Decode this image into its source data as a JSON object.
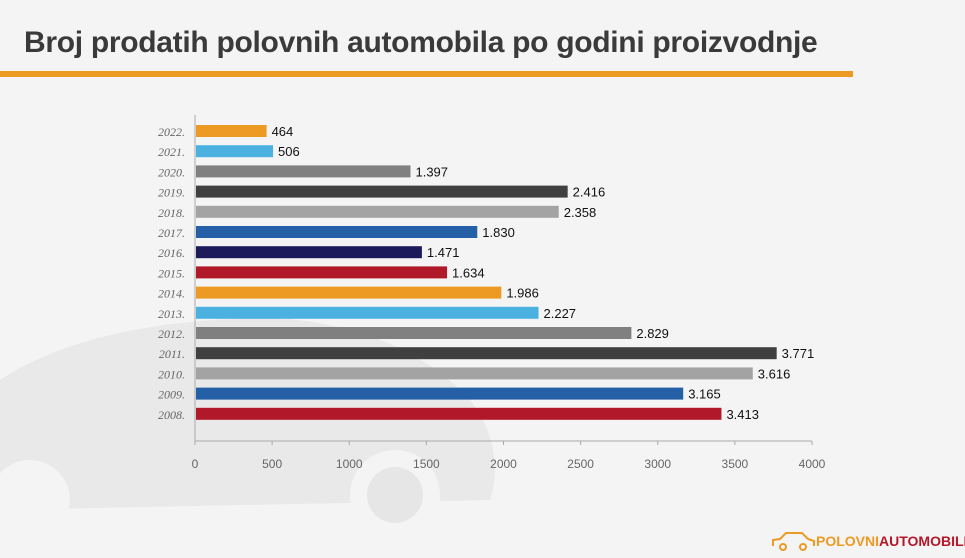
{
  "title": "Broj prodatih polovnih automobila po godini proizvodnje",
  "logo": {
    "part1": "POLOVNI",
    "part2": "AUTOMOBILI"
  },
  "chart_data": {
    "type": "bar",
    "orientation": "horizontal",
    "title": "Broj prodatih polovnih automobila po godini proizvodnje",
    "categories": [
      "2022.",
      "2021.",
      "2020.",
      "2019.",
      "2018.",
      "2017.",
      "2016.",
      "2015.",
      "2014.",
      "2013.",
      "2012.",
      "2011.",
      "2010.",
      "2009.",
      "2008."
    ],
    "values": [
      464,
      506,
      1397,
      2416,
      2358,
      1830,
      1471,
      1634,
      1986,
      2227,
      2829,
      3771,
      3616,
      3165,
      3413
    ],
    "labels": [
      "464",
      "506",
      "1.397",
      "2.416",
      "2.358",
      "1.830",
      "1.471",
      "1.634",
      "1.986",
      "2.227",
      "2.829",
      "3.771",
      "3.616",
      "3.165",
      "3.413"
    ],
    "colors": [
      "#ec9a23",
      "#4bb1e0",
      "#808080",
      "#404040",
      "#a3a3a3",
      "#255fa5",
      "#1c1a5a",
      "#b1192b",
      "#ec9a23",
      "#4bb1e0",
      "#808080",
      "#404040",
      "#a3a3a3",
      "#255fa5",
      "#b1192b"
    ],
    "xticks": [
      "0",
      "500",
      "1000",
      "1500",
      "2000",
      "2500",
      "3000",
      "3500",
      "4000"
    ],
    "xlim": [
      0,
      4000
    ],
    "xlabel": "",
    "ylabel": "",
    "grid": false,
    "legend": "none"
  }
}
